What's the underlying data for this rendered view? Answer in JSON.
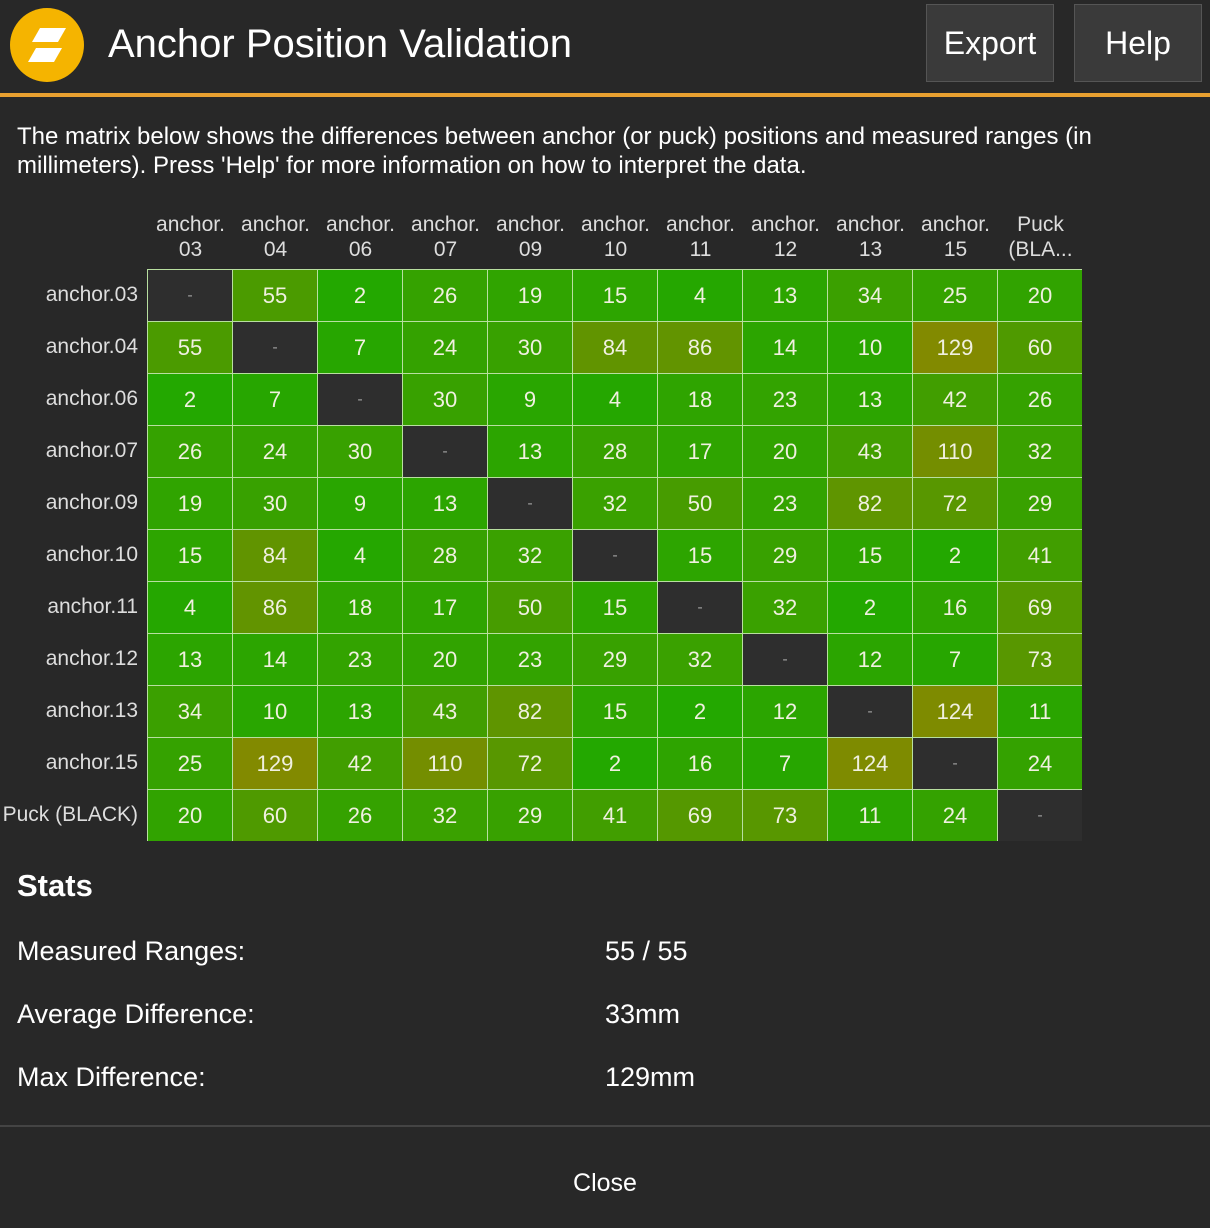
{
  "header": {
    "title": "Anchor Position Validation",
    "export_label": "Export",
    "help_label": "Help",
    "logo_icon": "app-logo-icon",
    "accent_color": "#e8a030"
  },
  "description": "The matrix below shows the differences between anchor (or puck) positions and measured ranges (in millimeters). Press 'Help' for more information on how to interpret the data.",
  "matrix": {
    "column_headers": [
      "anchor.\n03",
      "anchor.\n04",
      "anchor.\n06",
      "anchor.\n07",
      "anchor.\n09",
      "anchor.\n10",
      "anchor.\n11",
      "anchor.\n12",
      "anchor.\n13",
      "anchor.\n15",
      "Puck\n(BLA..."
    ],
    "row_headers": [
      "anchor.03",
      "anchor.04",
      "anchor.06",
      "anchor.07",
      "anchor.09",
      "anchor.10",
      "anchor.11",
      "anchor.12",
      "anchor.13",
      "anchor.15",
      "Puck (BLACK)"
    ],
    "empty_label": "-",
    "rows": [
      [
        null,
        55,
        2,
        26,
        19,
        15,
        4,
        13,
        34,
        25,
        20
      ],
      [
        55,
        null,
        7,
        24,
        30,
        84,
        86,
        14,
        10,
        129,
        60
      ],
      [
        2,
        7,
        null,
        30,
        9,
        4,
        18,
        23,
        13,
        42,
        26
      ],
      [
        26,
        24,
        30,
        null,
        13,
        28,
        17,
        20,
        43,
        110,
        32
      ],
      [
        19,
        30,
        9,
        13,
        null,
        32,
        50,
        23,
        82,
        72,
        29
      ],
      [
        15,
        84,
        4,
        28,
        32,
        null,
        15,
        29,
        15,
        2,
        41
      ],
      [
        4,
        86,
        18,
        17,
        50,
        15,
        null,
        32,
        2,
        16,
        69
      ],
      [
        13,
        14,
        23,
        20,
        23,
        29,
        32,
        null,
        12,
        7,
        73
      ],
      [
        34,
        10,
        13,
        43,
        82,
        15,
        2,
        12,
        null,
        124,
        11
      ],
      [
        25,
        129,
        42,
        110,
        72,
        2,
        16,
        7,
        124,
        null,
        24
      ],
      [
        20,
        60,
        26,
        32,
        29,
        41,
        69,
        73,
        11,
        24,
        null
      ]
    ],
    "colors": {
      "low": "#22a800",
      "high": "#828a00",
      "empty": "#2e2e2e"
    }
  },
  "stats": {
    "title": "Stats",
    "items": [
      {
        "label": "Measured Ranges:",
        "value": "55 / 55"
      },
      {
        "label": "Average Difference:",
        "value": "33mm"
      },
      {
        "label": "Max Difference:",
        "value": "129mm"
      }
    ]
  },
  "footer": {
    "close_label": "Close"
  }
}
